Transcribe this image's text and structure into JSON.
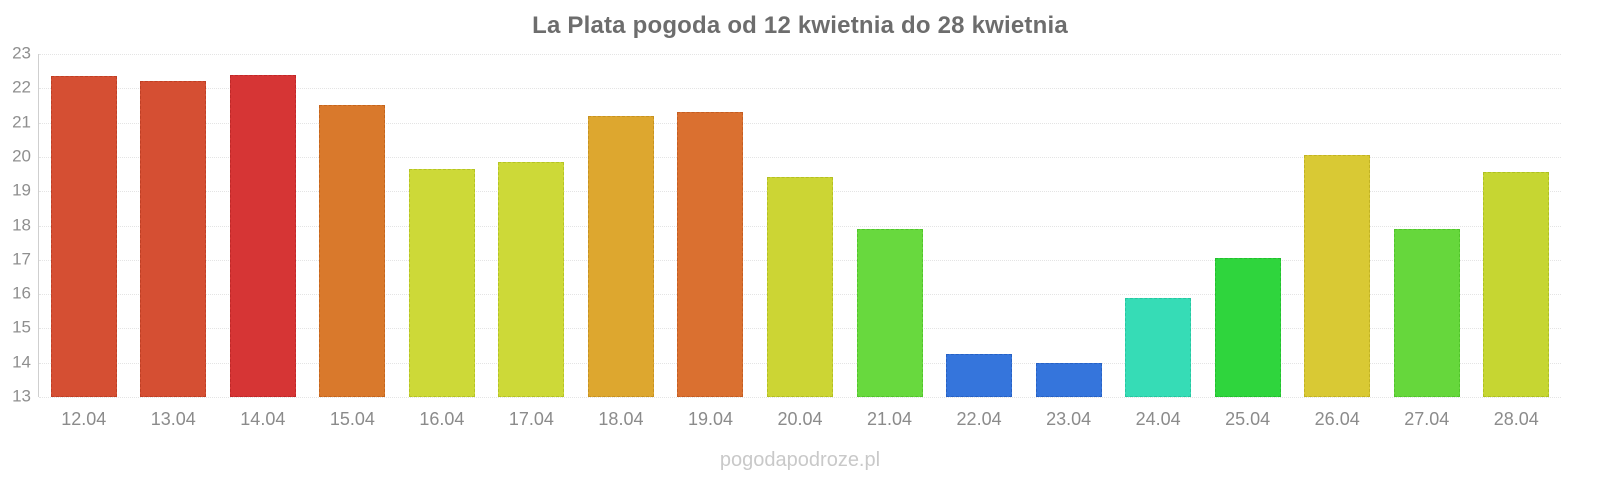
{
  "watermark": "pogodapodroze.pl",
  "colors": {
    "title": "#6d6d6d",
    "axis_line": "#cfcfcf",
    "gridline": "#e4e4e4",
    "y_label": "#8f8f8f",
    "x_label": "#8b8b8b",
    "watermark": "#c9c9c9",
    "background": "#ffffff"
  },
  "chart_data": {
    "type": "bar",
    "title": "La Plata pogoda od 12 kwietnia do 28 kwietnia",
    "xlabel": "",
    "ylabel": "",
    "ylim": [
      13,
      23
    ],
    "y_ticks": [
      23,
      22,
      21,
      20,
      19,
      18,
      17,
      16,
      15,
      14,
      13
    ],
    "grid": true,
    "legend": false,
    "categories": [
      "12.04",
      "13.04",
      "14.04",
      "15.04",
      "16.04",
      "17.04",
      "18.04",
      "19.04",
      "20.04",
      "21.04",
      "22.04",
      "23.04",
      "24.04",
      "25.04",
      "26.04",
      "27.04",
      "28.04"
    ],
    "values": [
      22.35,
      22.2,
      22.4,
      21.5,
      19.65,
      19.85,
      21.2,
      21.3,
      19.4,
      17.9,
      14.25,
      14.0,
      15.9,
      17.05,
      20.05,
      17.9,
      19.55
    ],
    "bar_colors": [
      "#d54f33",
      "#d54f33",
      "#d63535",
      "#d9792c",
      "#cdd938",
      "#cdd938",
      "#dda72f",
      "#da7030",
      "#ccd534",
      "#68d93e",
      "#3575dc",
      "#3575dc",
      "#36dcb6",
      "#2fd53d",
      "#d9c934",
      "#66d73c",
      "#c6d632"
    ],
    "bar_border_colors": [
      "#bf3f24",
      "#bf3f24",
      "#c02828",
      "#c4651d",
      "#b5c325",
      "#b5c325",
      "#c79220",
      "#c45d22",
      "#b4bf23",
      "#52c52c",
      "#2761c4",
      "#2761c4",
      "#27c6a0",
      "#22bf2e",
      "#c2b324",
      "#52c52c",
      "#aec022"
    ]
  }
}
